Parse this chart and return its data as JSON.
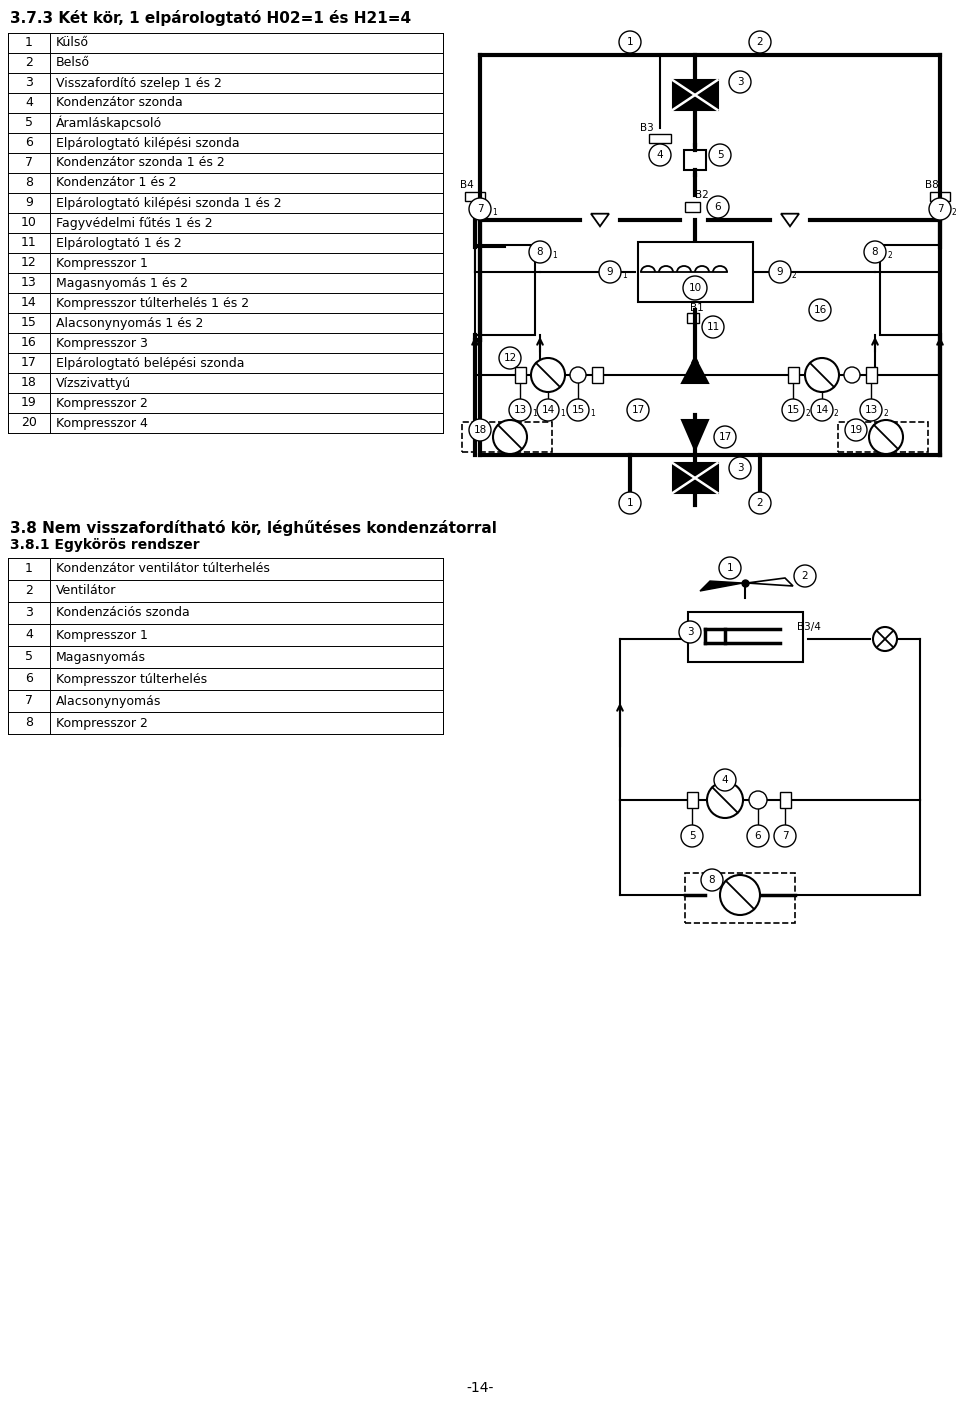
{
  "title1": "3.7.3 Két kör, 1 elpárologtató H02=1 és H21=4",
  "table1_rows": [
    [
      "1",
      "Külső"
    ],
    [
      "2",
      "Belső"
    ],
    [
      "3",
      "Visszafordító szelep 1 és 2"
    ],
    [
      "4",
      "Kondenzátor szonda"
    ],
    [
      "5",
      "Áramláskapcsoló"
    ],
    [
      "6",
      "Elpárologtató kilépési szonda"
    ],
    [
      "7",
      "Kondenzátor szonda 1 és 2"
    ],
    [
      "8",
      "Kondenzátor 1 és 2"
    ],
    [
      "9",
      "Elpárologtató kilépési szonda 1 és 2"
    ],
    [
      "10",
      "Fagyvédelmi fűtés 1 és 2"
    ],
    [
      "11",
      "Elpárologtató 1 és 2"
    ],
    [
      "12",
      "Kompresszor 1"
    ],
    [
      "13",
      "Magasnyomás 1 és 2"
    ],
    [
      "14",
      "Kompresszor túlterhelés 1 és 2"
    ],
    [
      "15",
      "Alacsonynyomás 1 és 2"
    ],
    [
      "16",
      "Kompresszor 3"
    ],
    [
      "17",
      "Elpárologtató belépési szonda"
    ],
    [
      "18",
      "Vízszivattyú"
    ],
    [
      "19",
      "Kompresszor 2"
    ],
    [
      "20",
      "Kompresszor 4"
    ]
  ],
  "title2": "3.8 Nem visszafordítható kör, léghűtéses kondenzátorral",
  "subtitle2": "3.8.1 Egykörös rendszer",
  "table2_rows": [
    [
      "1",
      "Kondenzátor ventilátor túlterhelés"
    ],
    [
      "2",
      "Ventilátor"
    ],
    [
      "3",
      "Kondenzációs szonda"
    ],
    [
      "4",
      "Kompresszor 1"
    ],
    [
      "5",
      "Magasnyomás"
    ],
    [
      "6",
      "Kompresszor túlterhelés"
    ],
    [
      "7",
      "Alacsonynyomás"
    ],
    [
      "8",
      "Kompresszor 2"
    ]
  ],
  "page_number": "-14-",
  "bg_color": "#ffffff",
  "text_color": "#000000"
}
